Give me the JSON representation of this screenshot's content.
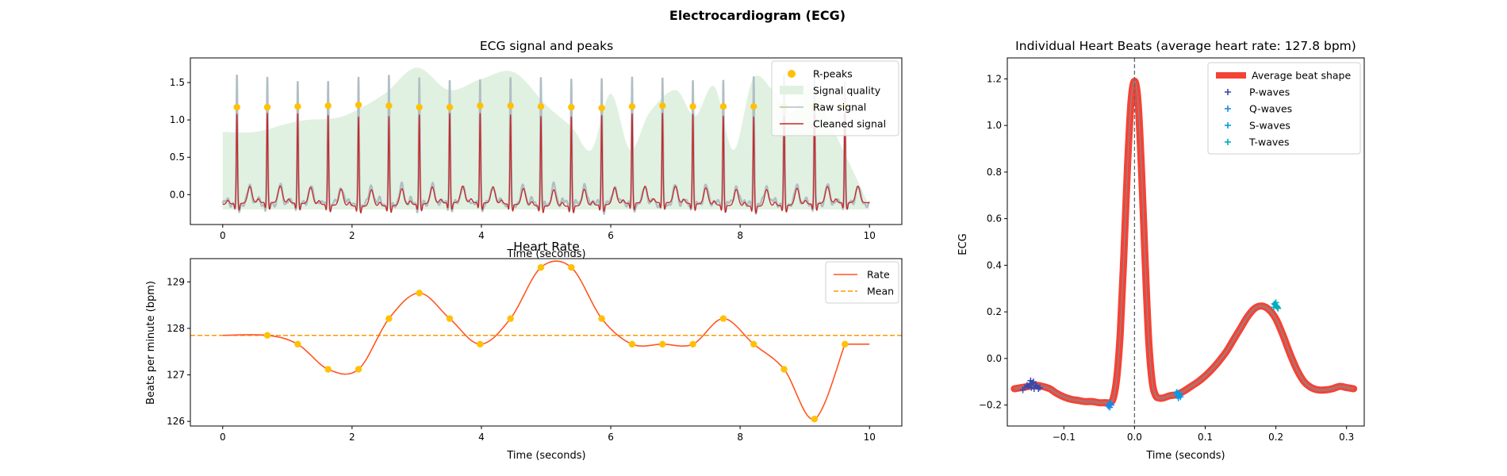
{
  "figure": {
    "suptitle": "Electrocardiogram (ECG)"
  },
  "colors": {
    "rpeaks": "#ffc107",
    "quality": "#e1f1e1",
    "raw": "#b0bec5",
    "cleaned": "#c62828",
    "rate": "#ff5722",
    "mean": "#ff9800",
    "avg_beat": "#f44336",
    "beat_line": "#999999",
    "p_waves": "#3949ab",
    "q_waves": "#1e88e5",
    "s_waves": "#039be5",
    "t_waves": "#00acc1"
  },
  "chart_data": [
    {
      "id": "ecg",
      "type": "line",
      "title": "ECG signal and peaks",
      "xlabel": "Time (seconds)",
      "ylabel": "",
      "xlim": [
        -0.5,
        10.5
      ],
      "ylim": [
        -0.4,
        1.83
      ],
      "xticks": [
        0,
        2,
        4,
        6,
        8,
        10
      ],
      "yticks": [
        0.0,
        0.5,
        1.0,
        1.5
      ],
      "xtick_labels": [
        "0",
        "2",
        "4",
        "6",
        "8",
        "10"
      ],
      "ytick_labels": [
        "0.0",
        "0.5",
        "1.0",
        "1.5"
      ],
      "legend": {
        "position": "top-right",
        "items": [
          {
            "label": "R-peaks",
            "kind": "marker",
            "color": "#ffc107"
          },
          {
            "label": "Signal quality",
            "kind": "patch",
            "color": "#e1f1e1"
          },
          {
            "label": "Raw signal",
            "kind": "line",
            "color": "#b0bec5"
          },
          {
            "label": "Cleaned signal",
            "kind": "line",
            "color": "#c62828"
          }
        ]
      },
      "r_peaks": {
        "t": [
          0.22,
          0.69,
          1.16,
          1.63,
          2.1,
          2.57,
          3.04,
          3.51,
          3.98,
          4.45,
          4.92,
          5.39,
          5.86,
          6.33,
          6.8,
          7.27,
          7.74,
          8.21,
          8.68,
          9.15,
          9.62
        ],
        "v": [
          1.17,
          1.17,
          1.18,
          1.19,
          1.2,
          1.19,
          1.17,
          1.17,
          1.19,
          1.19,
          1.18,
          1.17,
          1.16,
          1.18,
          1.19,
          1.18,
          1.18,
          1.18,
          1.18,
          1.18,
          1.18
        ]
      },
      "signal_quality": {
        "t": [
          0,
          0.5,
          1.0,
          1.3,
          1.7,
          2.0,
          2.5,
          3.0,
          3.5,
          4.0,
          4.5,
          5.0,
          5.4,
          5.7,
          6.0,
          6.3,
          6.6,
          7.0,
          7.3,
          7.6,
          7.9,
          8.2,
          8.5,
          8.8,
          9.1,
          9.4,
          9.7,
          10.0
        ],
        "v": [
          0.84,
          0.84,
          0.95,
          1.0,
          1.02,
          1.1,
          1.35,
          1.7,
          1.4,
          1.55,
          1.64,
          1.2,
          0.9,
          0.6,
          1.35,
          0.6,
          1.1,
          1.4,
          1.05,
          1.45,
          0.6,
          1.55,
          1.4,
          1.1,
          1.5,
          0.95,
          0.4,
          -0.15
        ]
      },
      "raw_signal": {
        "t0": 0.0,
        "t1": 10.0,
        "r_amp": 1.68,
        "baseline": -0.12
      },
      "cleaned_signal": {
        "t0": 0.0,
        "t1": 10.0,
        "r_amp": 1.2,
        "t_amp": 0.22,
        "baseline": -0.13
      }
    },
    {
      "id": "hr",
      "type": "line",
      "title": "Heart Rate",
      "xlabel": "Time (seconds)",
      "ylabel": "Beats per minute (bpm)",
      "xlim": [
        -0.5,
        10.5
      ],
      "ylim": [
        125.9,
        129.5
      ],
      "xticks": [
        0,
        2,
        4,
        6,
        8,
        10
      ],
      "yticks": [
        126,
        127,
        128,
        129
      ],
      "xtick_labels": [
        "0",
        "2",
        "4",
        "6",
        "8",
        "10"
      ],
      "ytick_labels": [
        "126",
        "127",
        "128",
        "129"
      ],
      "legend": {
        "position": "top-right",
        "items": [
          {
            "label": "Rate",
            "kind": "line",
            "color": "#ff5722"
          },
          {
            "label": "Mean",
            "kind": "dashed",
            "color": "#ff9800"
          }
        ]
      },
      "rate": {
        "t": [
          0.69,
          1.16,
          1.63,
          2.1,
          2.57,
          3.04,
          3.51,
          3.98,
          4.45,
          4.92,
          5.39,
          5.86,
          6.33,
          6.8,
          7.27,
          7.74,
          8.21,
          8.68,
          9.15,
          9.62
        ],
        "v": [
          127.85,
          127.66,
          127.12,
          127.12,
          128.21,
          128.76,
          128.21,
          127.66,
          128.21,
          129.31,
          129.31,
          128.21,
          127.66,
          127.66,
          127.66,
          128.21,
          127.66,
          127.12,
          126.05,
          127.66
        ]
      },
      "rate_start": 127.85,
      "rate_end": 127.66,
      "mean": 127.85
    },
    {
      "id": "beats",
      "type": "line",
      "title": "Individual Heart Beats (average heart rate: 127.8 bpm)",
      "xlabel": "Time (seconds)",
      "ylabel": "ECG",
      "xlim": [
        -0.18,
        0.325
      ],
      "ylim": [
        -0.29,
        1.29
      ],
      "xticks": [
        -0.1,
        0.0,
        0.1,
        0.2,
        0.3
      ],
      "yticks": [
        -0.2,
        0.0,
        0.2,
        0.4,
        0.6,
        0.8,
        1.0,
        1.2
      ],
      "xtick_labels": [
        "−0.1",
        "0.0",
        "0.1",
        "0.2",
        "0.3"
      ],
      "ytick_labels": [
        "−0.2",
        "0.0",
        "0.2",
        "0.4",
        "0.6",
        "0.8",
        "1.0",
        "1.2"
      ],
      "legend": {
        "position": "top-right",
        "items": [
          {
            "label": "Average beat shape",
            "kind": "thick",
            "color": "#f44336"
          },
          {
            "label": "P-waves",
            "kind": "plus",
            "color": "#3949ab"
          },
          {
            "label": "Q-waves",
            "kind": "plus",
            "color": "#1e88e5"
          },
          {
            "label": "S-waves",
            "kind": "plus",
            "color": "#039be5"
          },
          {
            "label": "T-waves",
            "kind": "plus",
            "color": "#00acc1"
          }
        ]
      },
      "average_beat": {
        "t": [
          -0.17,
          -0.16,
          -0.15,
          -0.14,
          -0.13,
          -0.12,
          -0.11,
          -0.1,
          -0.09,
          -0.08,
          -0.07,
          -0.06,
          -0.05,
          -0.04,
          -0.035,
          -0.03,
          -0.025,
          -0.02,
          -0.015,
          -0.01,
          -0.005,
          0.0,
          0.005,
          0.01,
          0.015,
          0.02,
          0.025,
          0.03,
          0.035,
          0.04,
          0.05,
          0.06,
          0.07,
          0.08,
          0.09,
          0.1,
          0.11,
          0.12,
          0.13,
          0.14,
          0.15,
          0.16,
          0.17,
          0.18,
          0.19,
          0.2,
          0.21,
          0.22,
          0.23,
          0.24,
          0.25,
          0.26,
          0.27,
          0.28,
          0.29,
          0.3,
          0.31
        ],
        "v": [
          -0.13,
          -0.125,
          -0.12,
          -0.115,
          -0.12,
          -0.13,
          -0.15,
          -0.165,
          -0.175,
          -0.18,
          -0.185,
          -0.185,
          -0.19,
          -0.19,
          -0.19,
          -0.17,
          -0.08,
          0.12,
          0.45,
          0.82,
          1.1,
          1.19,
          1.1,
          0.8,
          0.42,
          0.08,
          -0.1,
          -0.16,
          -0.17,
          -0.17,
          -0.16,
          -0.155,
          -0.14,
          -0.12,
          -0.1,
          -0.075,
          -0.045,
          -0.01,
          0.03,
          0.08,
          0.13,
          0.18,
          0.215,
          0.225,
          0.21,
          0.17,
          0.1,
          0.02,
          -0.05,
          -0.1,
          -0.125,
          -0.135,
          -0.135,
          -0.13,
          -0.12,
          -0.125,
          -0.13
        ]
      },
      "p_waves": {
        "t": [
          -0.158,
          -0.155,
          -0.152,
          -0.15,
          -0.148,
          -0.146,
          -0.144,
          -0.142,
          -0.14,
          -0.138,
          -0.136,
          -0.134,
          -0.147,
          -0.143
        ],
        "v": [
          -0.135,
          -0.125,
          -0.115,
          -0.12,
          -0.11,
          -0.125,
          -0.105,
          -0.13,
          -0.115,
          -0.12,
          -0.13,
          -0.125,
          -0.095,
          -0.1
        ]
      },
      "q_waves": {
        "t": [
          -0.036,
          -0.034,
          -0.035,
          -0.033,
          -0.037,
          -0.035
        ],
        "v": [
          -0.2,
          -0.19,
          -0.21,
          -0.2,
          -0.205,
          -0.195
        ]
      },
      "s_waves": {
        "t": [
          0.059,
          0.061,
          0.063,
          0.065,
          0.06,
          0.062,
          0.064,
          0.062
        ],
        "v": [
          -0.15,
          -0.16,
          -0.155,
          -0.165,
          -0.145,
          -0.17,
          -0.15,
          -0.16
        ]
      },
      "t_waves": {
        "t": [
          0.197,
          0.199,
          0.201,
          0.203,
          0.198,
          0.2,
          0.202
        ],
        "v": [
          0.22,
          0.23,
          0.225,
          0.215,
          0.235,
          0.24,
          0.22
        ]
      },
      "vline_x": 0.0
    }
  ]
}
